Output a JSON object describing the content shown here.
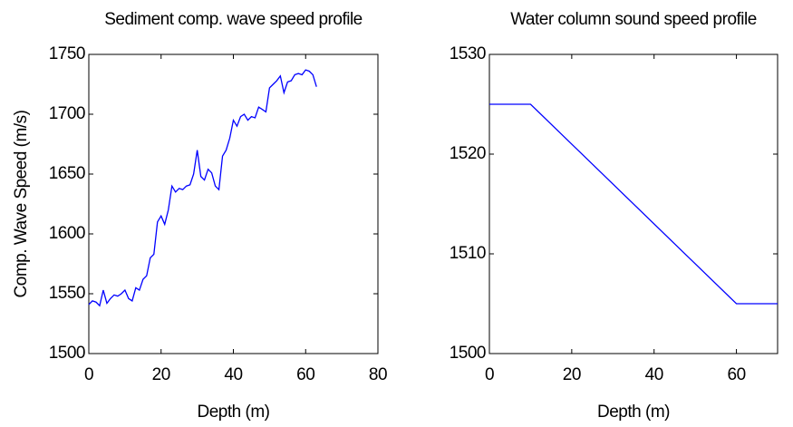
{
  "chart_data": [
    {
      "type": "line",
      "title": "Sediment comp. wave speed profile",
      "xlabel": "Depth (m)",
      "ylabel": "Comp. Wave Speed (m/s)",
      "xlim": [
        0,
        80
      ],
      "xticks": [
        0,
        20,
        40,
        60,
        80
      ],
      "ylim": [
        1500,
        1750
      ],
      "yticks": [
        1500,
        1550,
        1600,
        1650,
        1700,
        1750
      ],
      "series": [
        {
          "color": "#0000ff",
          "x": [
            0,
            1,
            2,
            3,
            4,
            5,
            6,
            7,
            8,
            9,
            10,
            11,
            12,
            13,
            14,
            15,
            16,
            17,
            18,
            19,
            20,
            21,
            22,
            23,
            24,
            25,
            26,
            27,
            28,
            29,
            30,
            31,
            32,
            33,
            34,
            35,
            36,
            37,
            38,
            39,
            40,
            41,
            42,
            43,
            44,
            45,
            46,
            47,
            48,
            49,
            50,
            51,
            52,
            53,
            54,
            55,
            56,
            57,
            58,
            59,
            60,
            61,
            62,
            63
          ],
          "values": [
            1541,
            1544,
            1543,
            1540,
            1553,
            1542,
            1546,
            1549,
            1548,
            1550,
            1553,
            1546,
            1544,
            1555,
            1553,
            1562,
            1565,
            1580,
            1583,
            1610,
            1615,
            1608,
            1620,
            1640,
            1635,
            1638,
            1637,
            1640,
            1641,
            1650,
            1670,
            1648,
            1645,
            1654,
            1651,
            1640,
            1637,
            1665,
            1670,
            1680,
            1695,
            1690,
            1698,
            1700,
            1695,
            1698,
            1697,
            1706,
            1704,
            1702,
            1722,
            1725,
            1728,
            1732,
            1718,
            1727,
            1728,
            1733,
            1734,
            1733,
            1737,
            1736,
            1733,
            1723
          ]
        }
      ]
    },
    {
      "type": "line",
      "title": "Water column sound speed profile",
      "xlabel": "Depth (m)",
      "xlim": [
        0,
        70
      ],
      "xticks": [
        0,
        20,
        40,
        60
      ],
      "ylim": [
        1500,
        1530
      ],
      "yticks": [
        1500,
        1510,
        1520,
        1530
      ],
      "series": [
        {
          "color": "#0000ff",
          "x": [
            0,
            10,
            60,
            70
          ],
          "values": [
            1525,
            1525,
            1505,
            1505
          ]
        }
      ]
    }
  ]
}
